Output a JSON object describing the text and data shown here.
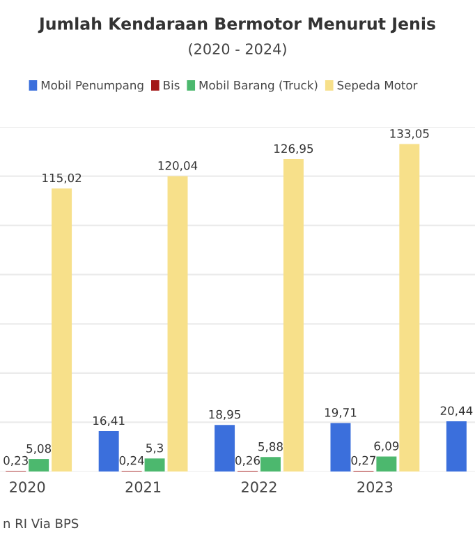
{
  "chart_data": {
    "type": "bar",
    "title": "Jumlah Kendaraan Bermotor Menurut Jenis",
    "subtitle": "(2020 - 2024)",
    "categories": [
      "2020",
      "2021",
      "2022",
      "2023",
      null
    ],
    "series": [
      {
        "name": "Mobil Penumpang",
        "color": "#3b6fdc",
        "values": [
          null,
          16.41,
          18.95,
          19.71,
          20.44
        ],
        "value_labels": [
          null,
          "16,41",
          "18,95",
          "19,71",
          "20,44"
        ]
      },
      {
        "name": "Bis",
        "color": "#a31818",
        "values": [
          0.23,
          0.24,
          0.26,
          0.27,
          null
        ],
        "value_labels": [
          "0,23",
          "0,24",
          "0,26",
          "0,27",
          null
        ]
      },
      {
        "name": "Mobil Barang (Truck)",
        "color": "#4cb86e",
        "values": [
          5.08,
          5.3,
          5.88,
          6.09,
          null
        ],
        "value_labels": [
          "5,08",
          "5,3",
          "5,88",
          "6,09",
          null
        ]
      },
      {
        "name": "Sepeda Motor",
        "color": "#f7e08a",
        "values": [
          115.02,
          120.04,
          126.95,
          133.05,
          null
        ],
        "value_labels": [
          "115,02",
          "120,04",
          "126,95",
          "133,05",
          null
        ]
      }
    ],
    "ylim": [
      0,
      140
    ],
    "yticks": [
      {
        "value": 0,
        "label": null
      },
      {
        "value": 20,
        "label": null
      },
      {
        "value": 40,
        "label": null
      },
      {
        "value": 60,
        "label": null
      },
      {
        "value": 80,
        "label": null
      },
      {
        "value": 100,
        "label": null
      },
      {
        "value": 120,
        "label": null
      },
      {
        "value": 140,
        "label": null
      }
    ],
    "grid": "y",
    "legend": "top",
    "annotations": [
      "n RI Via BPS"
    ]
  }
}
